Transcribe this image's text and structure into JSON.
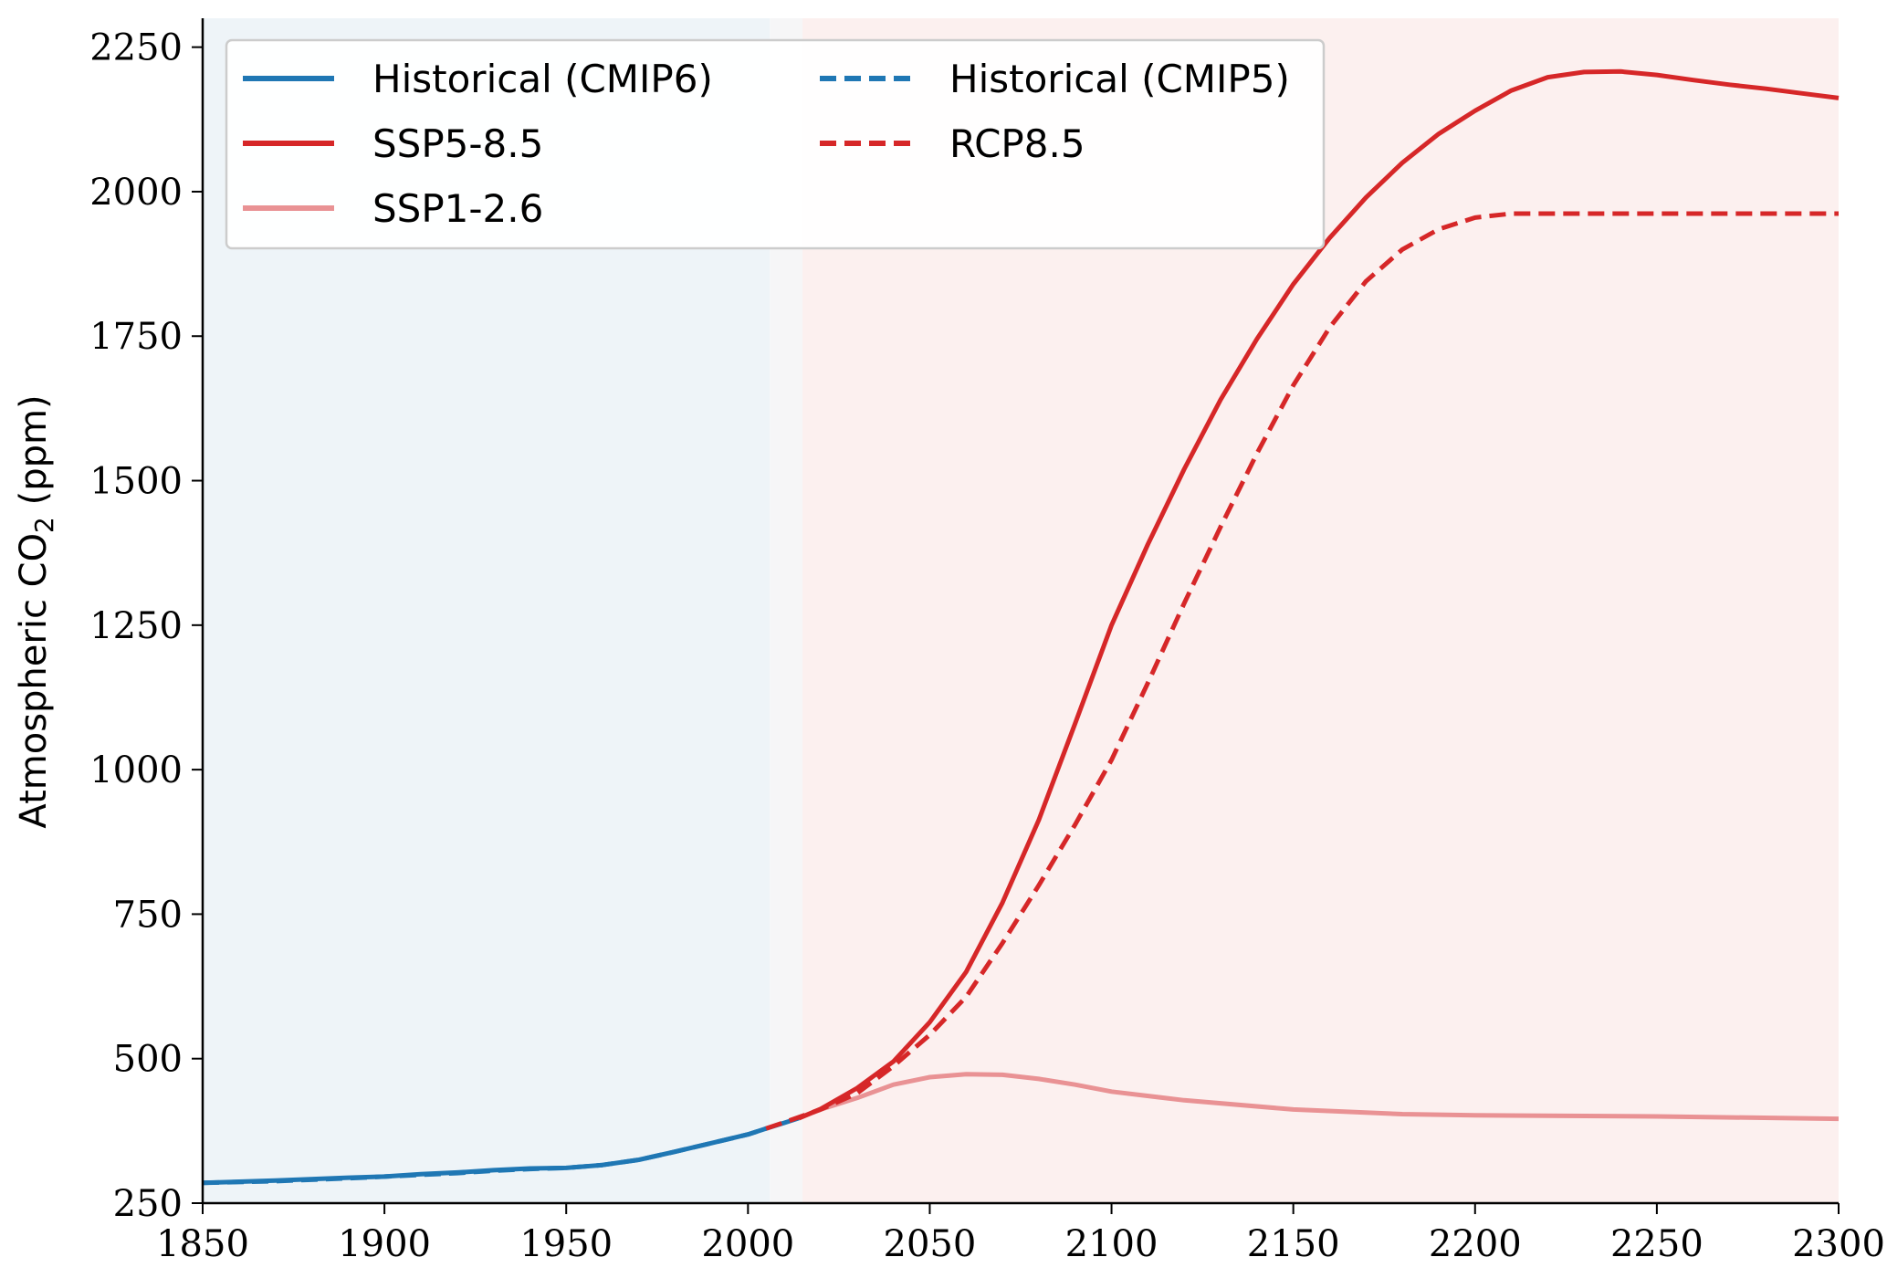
{
  "chart_data": {
    "type": "line",
    "title": "",
    "xlabel": "",
    "ylabel_main": "Atmospheric CO",
    "ylabel_sub": "2",
    "ylabel_unit": "(ppm)",
    "xlim": [
      1850,
      2300
    ],
    "ylim": [
      250,
      2300
    ],
    "xticks": [
      1850,
      1900,
      1950,
      2000,
      2050,
      2100,
      2150,
      2200,
      2250,
      2300
    ],
    "yticks": [
      250,
      500,
      750,
      1000,
      1250,
      1500,
      1750,
      2000,
      2250
    ],
    "shaded_regions": [
      {
        "name": "historical-cmip5-period",
        "x_start": 1850,
        "x_end": 2006,
        "color": "#eef4f8"
      },
      {
        "name": "transition-period",
        "x_start": 2006,
        "x_end": 2015,
        "color": "#f6f6f7"
      },
      {
        "name": "scenario-period",
        "x_start": 2015,
        "x_end": 2300,
        "color": "#fcf0ef"
      }
    ],
    "series": [
      {
        "name": "Historical (CMIP6)",
        "color": "#1f77b4",
        "dashed": false,
        "x": [
          1850,
          1870,
          1890,
          1900,
          1910,
          1920,
          1930,
          1940,
          1950,
          1960,
          1970,
          1980,
          1990,
          2000,
          2005,
          2010,
          2014
        ],
        "y": [
          285,
          289,
          294,
          296,
          300,
          303,
          307,
          310,
          311,
          316,
          325,
          339,
          354,
          369,
          379,
          389,
          397
        ]
      },
      {
        "name": "SSP5-8.5",
        "color": "#d62728",
        "dashed": false,
        "x": [
          2014,
          2020,
          2030,
          2040,
          2050,
          2060,
          2070,
          2080,
          2090,
          2100,
          2110,
          2120,
          2130,
          2140,
          2150,
          2160,
          2170,
          2180,
          2190,
          2200,
          2210,
          2220,
          2230,
          2240,
          2250,
          2260,
          2270,
          2280,
          2290,
          2300
        ],
        "y": [
          397,
          413,
          449,
          495,
          563,
          650,
          770,
          913,
          1080,
          1250,
          1390,
          1520,
          1640,
          1745,
          1840,
          1920,
          1990,
          2050,
          2100,
          2140,
          2175,
          2198,
          2207,
          2208,
          2202,
          2193,
          2185,
          2178,
          2170,
          2162
        ]
      },
      {
        "name": "SSP1-2.6",
        "color": "#e99294",
        "dashed": false,
        "x": [
          2014,
          2020,
          2030,
          2040,
          2050,
          2060,
          2070,
          2080,
          2090,
          2100,
          2120,
          2150,
          2180,
          2200,
          2250,
          2300
        ],
        "y": [
          397,
          412,
          432,
          455,
          468,
          473,
          472,
          465,
          455,
          443,
          428,
          412,
          404,
          402,
          400,
          396
        ]
      },
      {
        "name": "Historical (CMIP5)",
        "color": "#1f77b4",
        "dashed": true,
        "x": [
          1850,
          1870,
          1890,
          1900,
          1910,
          1920,
          1930,
          1940,
          1950,
          1960,
          1970,
          1980,
          1990,
          2000,
          2005
        ],
        "y": [
          285,
          288,
          293,
          296,
          299,
          302,
          306,
          309,
          311,
          316,
          325,
          339,
          354,
          369,
          379
        ]
      },
      {
        "name": "RCP8.5",
        "color": "#d62728",
        "dashed": true,
        "x": [
          2005,
          2010,
          2020,
          2030,
          2040,
          2050,
          2060,
          2070,
          2080,
          2090,
          2100,
          2110,
          2120,
          2130,
          2140,
          2150,
          2160,
          2170,
          2180,
          2190,
          2200,
          2210,
          2220,
          2230,
          2240,
          2250,
          2260,
          2270,
          2280,
          2290,
          2300
        ],
        "y": [
          379,
          390,
          412,
          440,
          487,
          541,
          607,
          700,
          800,
          905,
          1017,
          1150,
          1288,
          1420,
          1547,
          1665,
          1765,
          1845,
          1900,
          1935,
          1955,
          1962,
          1962,
          1962,
          1962,
          1962,
          1962,
          1962,
          1962,
          1962,
          1962
        ]
      }
    ],
    "legend": {
      "placement": "top-left",
      "columns": 2,
      "entries": [
        {
          "label": "Historical (CMIP6)",
          "color": "#1f77b4",
          "dashed": false
        },
        {
          "label": "SSP5-8.5",
          "color": "#d62728",
          "dashed": false
        },
        {
          "label": "SSP1-2.6",
          "color": "#e99294",
          "dashed": false
        },
        {
          "label": "Historical (CMIP5)",
          "color": "#1f77b4",
          "dashed": true
        },
        {
          "label": "RCP8.5",
          "color": "#d62728",
          "dashed": true
        }
      ]
    }
  }
}
